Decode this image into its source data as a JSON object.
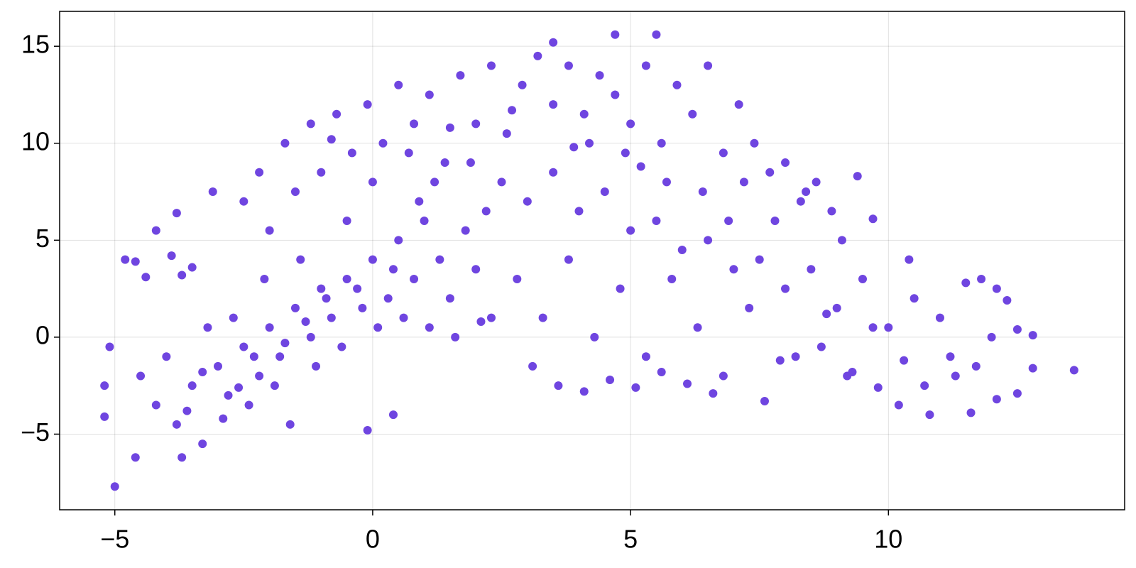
{
  "chart_data": {
    "type": "scatter",
    "x": [
      -5,
      -5.1,
      -4.8,
      -4.6,
      -4.4,
      -4.2,
      -3.8,
      -3.9,
      -3.7,
      -3.5,
      -3.1,
      -4.6,
      -3.7,
      -0.1,
      0.4,
      13.6,
      12.8,
      12.8,
      12.5,
      9.7,
      5.5,
      4.7,
      3.5,
      -5.2,
      -5.2,
      12.1,
      12.5,
      11.6,
      12.1,
      12.3,
      -4.5,
      -4.2,
      -4,
      -3.8,
      -3.5,
      -3.3,
      -3,
      -2.8,
      -2.5,
      -2.2,
      -2,
      -1.8,
      -1.5,
      -1.2,
      -1,
      -0.8,
      -0.5,
      -0.2,
      0,
      0.3,
      0.5,
      0.8,
      1,
      1.3,
      1.5,
      1.8,
      2,
      2.3,
      -3.2,
      -2.7,
      -2.4,
      -1.9,
      -1.6,
      -1.1,
      -0.6,
      0.1,
      0.6,
      1.1,
      1.6,
      2.1,
      -2.5,
      -2.2,
      -2,
      -1.7,
      -1.5,
      -1.2,
      -1,
      -0.7,
      -0.4,
      -0.1,
      0.2,
      0.5,
      0.8,
      1.1,
      1.4,
      1.7,
      2,
      2.3,
      2.6,
      2.9,
      3.2,
      3.5,
      3.8,
      4.1,
      4.4,
      4.7,
      5,
      5.3,
      5.6,
      5.9,
      6.2,
      6.5,
      6.8,
      7.1,
      7.4,
      7.7,
      8,
      8.3,
      8.6,
      8.9,
      2.5,
      3,
      3.5,
      4,
      4.5,
      5,
      5.5,
      6,
      6.5,
      7,
      2.8,
      3.3,
      3.8,
      4.3,
      4.8,
      5.3,
      5.8,
      6.3,
      6.8,
      7.3,
      3.1,
      3.6,
      4.1,
      4.6,
      5.1,
      5.6,
      6.1,
      6.6,
      7.6,
      7.9,
      7.5,
      8,
      8.5,
      9,
      9.5,
      10,
      10.5,
      11,
      11.5,
      12,
      8.2,
      8.7,
      9.2,
      9.7,
      10.2,
      10.7,
      11.2,
      11.7,
      9.4,
      10.4,
      8.8,
      9.3,
      9.8,
      10.3,
      10.8,
      11.3,
      9.1,
      8.4,
      7.8,
      11.8,
      -3.6,
      -3.3,
      -2.9,
      -2.6,
      -2.3,
      -1.7,
      -1.3,
      -0.9,
      -0.3,
      0.4,
      0.9,
      1.2,
      1.9,
      2.2,
      0.7,
      -0.5,
      -1.4,
      -2.1,
      4.2,
      5.2,
      6.4,
      6.9,
      7.2,
      5.7,
      4.9,
      3.9,
      2.7,
      1.5,
      0,
      -0.8
    ],
    "values": [
      -7.7,
      -0.5,
      4,
      3.9,
      3.1,
      5.5,
      6.4,
      4.2,
      3.2,
      3.6,
      7.5,
      -6.2,
      -6.2,
      -4.8,
      -4,
      -1.7,
      -1.6,
      0.1,
      0.4,
      6.1,
      15.6,
      15.6,
      15.2,
      -2.5,
      -4.1,
      -3.2,
      -2.9,
      -3.9,
      2.5,
      1.9,
      -2,
      -3.5,
      -1,
      -4.5,
      -2.5,
      -5.5,
      -1.5,
      -3,
      -0.5,
      -2,
      0.5,
      -1,
      1.5,
      0,
      2.5,
      1,
      3,
      1.5,
      4,
      2,
      5,
      3,
      6,
      4,
      2,
      5.5,
      3.5,
      1,
      0.5,
      1,
      -3.5,
      -2.5,
      -4.5,
      -1.5,
      -0.5,
      0.5,
      1,
      0.5,
      0,
      0.8,
      7,
      8.5,
      5.5,
      10,
      7.5,
      11,
      8.5,
      11.5,
      9.5,
      12,
      10,
      13,
      11,
      12.5,
      9,
      13.5,
      11,
      14,
      10.5,
      13,
      14.5,
      12,
      14,
      11.5,
      13.5,
      12.5,
      11,
      14,
      10,
      13,
      11.5,
      14,
      9.5,
      12,
      10,
      8.5,
      9,
      7,
      8,
      6.5,
      8,
      7,
      8.5,
      6.5,
      7.5,
      5.5,
      6,
      4.5,
      5,
      3.5,
      3,
      1,
      4,
      0,
      2.5,
      -1,
      3,
      0.5,
      -2,
      1.5,
      -1.5,
      -2.5,
      -2.8,
      -2.2,
      -2.6,
      -1.8,
      -2.4,
      -2.9,
      -3.3,
      -1.2,
      4,
      2.5,
      3.5,
      1.5,
      3,
      0.5,
      2,
      1,
      2.8,
      0,
      -1,
      -0.5,
      -2,
      0.5,
      -3.5,
      -2.5,
      -1,
      -1.5,
      8.3,
      4,
      1.2,
      -1.8,
      -2.6,
      -1.2,
      -4,
      -2,
      5,
      7.5,
      6,
      3,
      -3.8,
      -1.8,
      -4.2,
      -2.6,
      -1,
      -0.3,
      0.8,
      2,
      2.5,
      3.5,
      7,
      8,
      9,
      6.5,
      9.5,
      6,
      4,
      3,
      10,
      8.8,
      7.5,
      6,
      8,
      8,
      9.5,
      9.8,
      11.7,
      10.8,
      8,
      10.2
    ],
    "color": "#6f45e0",
    "xlim": [
      -6.07,
      14.58
    ],
    "ylim": [
      -8.9,
      16.8
    ],
    "xticks": [
      {
        "value": -5,
        "label": "−5"
      },
      0,
      5,
      10
    ],
    "yticks": [
      {
        "value": -5,
        "label": "−5"
      },
      0,
      5,
      10,
      15
    ],
    "grid": true
  }
}
